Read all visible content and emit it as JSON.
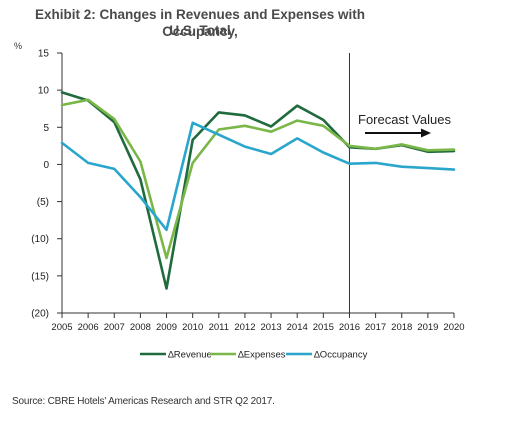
{
  "title_line1": "Exhibit 2: Changes in Revenues and Expenses with Occupancy,",
  "title_line2": "U.S. Total",
  "y_unit": "%",
  "source": "Source: CBRE Hotels' Americas Research and STR Q2 2017.",
  "chart_data": {
    "type": "line",
    "x": [
      2005,
      2006,
      2007,
      2008,
      2009,
      2010,
      2011,
      2012,
      2013,
      2014,
      2015,
      2016,
      2017,
      2018,
      2019,
      2020
    ],
    "y_ticks": [
      15,
      10,
      5,
      0,
      -5,
      -10,
      -15,
      -20
    ],
    "y_tick_labels": [
      "15",
      "10",
      "5",
      "0",
      "(5)",
      "(10)",
      "(15)",
      "(20)"
    ],
    "ylim": [
      -20,
      15
    ],
    "grid": false,
    "legend_position": "bottom",
    "series": [
      {
        "name": "∆Revenue",
        "color": "#1f6b3d",
        "values": [
          9.7,
          8.6,
          5.7,
          -2.0,
          -16.7,
          3.3,
          7.0,
          6.6,
          5.1,
          7.9,
          6.0,
          2.3,
          2.1,
          2.6,
          1.7,
          1.8
        ]
      },
      {
        "name": "∆Expenses",
        "color": "#7ab648",
        "values": [
          8.0,
          8.7,
          6.1,
          0.4,
          -12.6,
          0.2,
          4.7,
          5.2,
          4.4,
          5.9,
          5.2,
          2.5,
          2.1,
          2.7,
          1.9,
          2.0
        ]
      },
      {
        "name": "∆Occupancy",
        "color": "#2aa6cc",
        "values": [
          2.9,
          0.2,
          -0.6,
          -4.4,
          -8.8,
          5.6,
          4.0,
          2.4,
          1.4,
          3.5,
          1.6,
          0.1,
          0.2,
          -0.3,
          -0.5,
          -0.7
        ]
      }
    ],
    "annotation": {
      "text": "Forecast Values",
      "at_x": 2016
    }
  }
}
